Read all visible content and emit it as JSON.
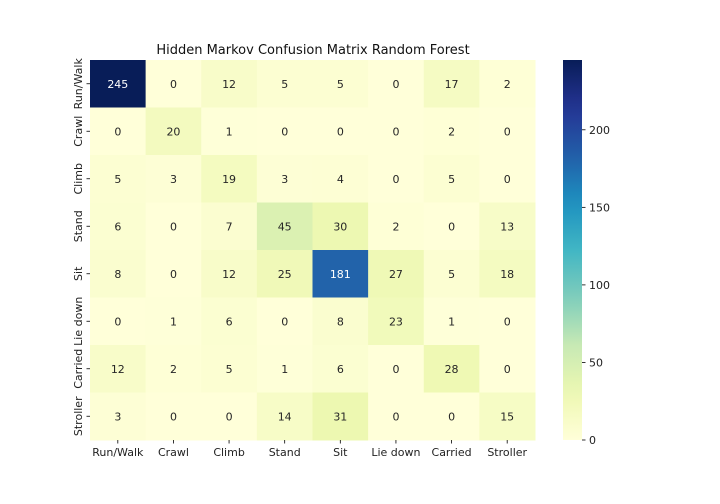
{
  "chart_data": {
    "type": "heatmap",
    "title": "Hidden Markov Confusion Matrix Random Forest",
    "xlabel": "",
    "ylabel": "",
    "x_categories": [
      "Run/Walk",
      "Crawl",
      "Climb",
      "Stand",
      "Sit",
      "Lie down",
      "Carried",
      "Stroller"
    ],
    "y_categories": [
      "Run/Walk",
      "Crawl",
      "Climb",
      "Stand",
      "Sit",
      "Lie down",
      "Carried",
      "Stroller"
    ],
    "values": [
      [
        245,
        0,
        12,
        5,
        5,
        0,
        17,
        2
      ],
      [
        0,
        20,
        1,
        0,
        0,
        0,
        2,
        0
      ],
      [
        5,
        3,
        19,
        3,
        4,
        0,
        5,
        0
      ],
      [
        6,
        0,
        7,
        45,
        30,
        2,
        0,
        13
      ],
      [
        8,
        0,
        12,
        25,
        181,
        27,
        5,
        18
      ],
      [
        0,
        1,
        6,
        0,
        8,
        23,
        1,
        0
      ],
      [
        12,
        2,
        5,
        1,
        6,
        0,
        28,
        0
      ],
      [
        3,
        0,
        0,
        14,
        31,
        0,
        0,
        15
      ]
    ],
    "colormap": "YlGnBu",
    "vmin": 0,
    "vmax": 245,
    "colorbar_ticks": [
      0,
      50,
      100,
      150,
      200
    ],
    "annotations": true,
    "grid": false
  }
}
